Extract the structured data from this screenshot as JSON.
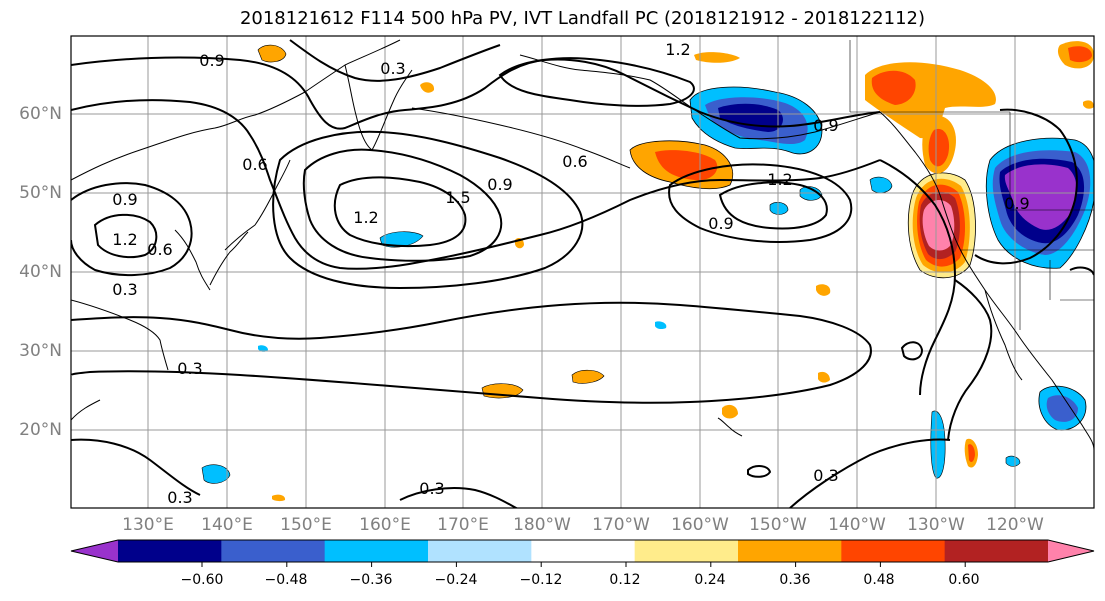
{
  "title": "2018121612 F114 500 hPa PV, IVT Landfall PC (2018121912 - 2018122112)",
  "lat_labels": [
    "60°N",
    "50°N",
    "40°N",
    "30°N",
    "20°N"
  ],
  "lon_labels": [
    "130°E",
    "140°E",
    "150°E",
    "160°E",
    "170°E",
    "180°W",
    "170°W",
    "160°W",
    "150°W",
    "140°W",
    "130°W",
    "120°W"
  ],
  "contour_labels": [
    "0.9",
    "0.3",
    "1.2",
    "0.6",
    "0.9",
    "1.5",
    "1.2",
    "0.9",
    "0.6",
    "0.9",
    "1.2",
    "0.9",
    "0.3",
    "0.3",
    "0.3",
    "0.3",
    "0.9",
    "1.2",
    "0.6",
    "0.3"
  ],
  "colorbar": {
    "ticks": [
      "−0.60",
      "−0.48",
      "−0.36",
      "−0.24",
      "−0.12",
      "0.12",
      "0.24",
      "0.36",
      "0.48",
      "0.60"
    ],
    "colors": [
      "#9932cc",
      "#00008b",
      "#3a5fcd",
      "#00bfff",
      "#b0e2ff",
      "#ffffff",
      "#ffec8b",
      "#ffa500",
      "#ff4500",
      "#b22222",
      "#ff82ab"
    ]
  },
  "colors": {
    "purple": "#9932cc",
    "navy": "#00008b",
    "royal_blue": "#3a5fcd",
    "deep_sky_blue": "#00bfff",
    "light_blue": "#b0e2ff",
    "light_yellow": "#ffec8b",
    "orange": "#ffa500",
    "orange_red": "#ff4500",
    "firebrick": "#b22222",
    "pink": "#ff82ab",
    "grid": "#999999"
  }
}
